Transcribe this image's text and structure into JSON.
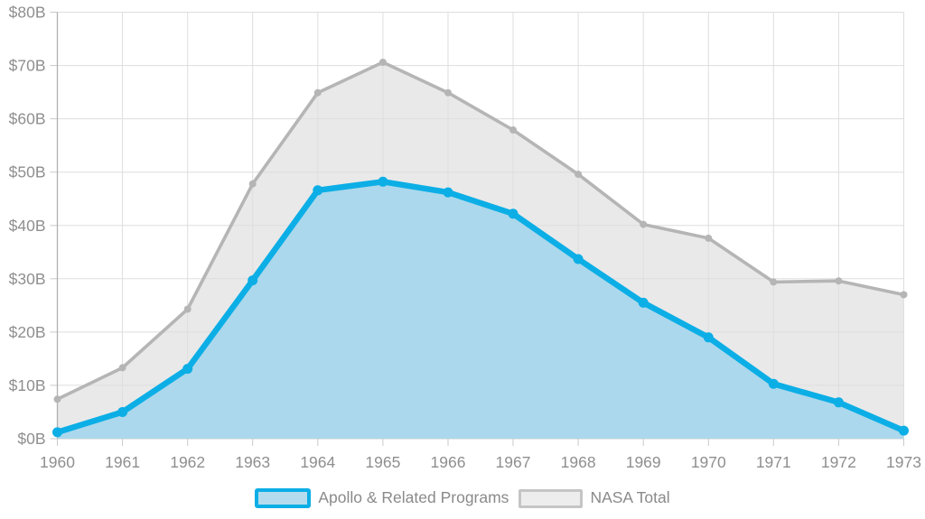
{
  "chart_data": {
    "type": "area",
    "title": "",
    "xlabel": "",
    "ylabel": "",
    "x": [
      1960,
      1961,
      1962,
      1963,
      1964,
      1965,
      1966,
      1967,
      1968,
      1969,
      1970,
      1971,
      1972,
      1973
    ],
    "ylim": [
      0,
      80
    ],
    "y_tick_step": 10,
    "y_tick_labels": [
      "$0B",
      "$10B",
      "$20B",
      "$30B",
      "$40B",
      "$50B",
      "$60B",
      "$70B",
      "$80B"
    ],
    "grid": true,
    "legend_position": "bottom-center",
    "series": [
      {
        "name": "NASA Total",
        "values": [
          7.4,
          13.3,
          24.3,
          47.8,
          64.9,
          70.6,
          64.9,
          57.9,
          49.6,
          40.2,
          37.6,
          29.4,
          29.6,
          27.0
        ],
        "line_color": "#b5b5b5",
        "fill_color": "#e9e9e9",
        "marker_radius": 4
      },
      {
        "name": "Apollo & Related Programs",
        "values": [
          1.2,
          5.0,
          13.1,
          29.7,
          46.6,
          48.2,
          46.2,
          42.2,
          33.7,
          25.5,
          19.0,
          10.3,
          6.8,
          1.5
        ],
        "line_color": "#0caee6",
        "fill_color": "#abd8ec",
        "marker_radius": 5.5
      }
    ]
  },
  "colors": {
    "background": "#ffffff",
    "grid": "#dedede",
    "tick": "#c9c9c9",
    "axis": "#b0b0b0",
    "axis_label": "#8f8f8f",
    "legend_text": "#8a8a8a",
    "legend_apollo_border": "#0caee6",
    "legend_apollo_fill": "#b5dcee",
    "legend_nasa_border": "#c5c5c5",
    "legend_nasa_fill": "#ededed"
  }
}
